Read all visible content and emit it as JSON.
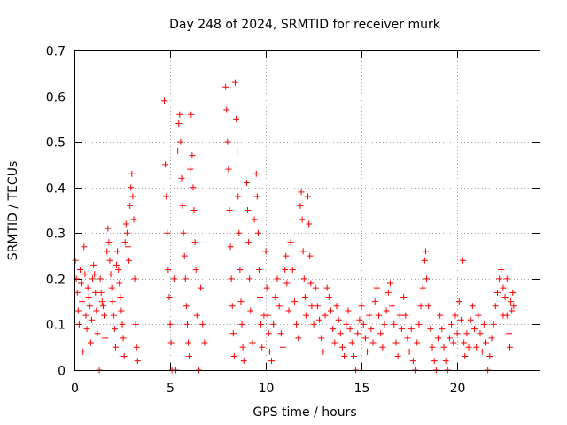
{
  "chart_data": {
    "type": "scatter",
    "title": "Day 248 of 2024, SRMTID for receiver murk",
    "xlabel": "GPS time / hours",
    "ylabel": "SRMTID / TECUs",
    "xlim": [
      0,
      24.3
    ],
    "ylim": [
      0,
      0.7
    ],
    "x_ticks": [
      0,
      5,
      10,
      15,
      20
    ],
    "x_tick_labels": [
      "0",
      "5",
      "10",
      "15",
      "20"
    ],
    "y_ticks": [
      0,
      0.1,
      0.2,
      0.3,
      0.4,
      0.5,
      0.6,
      0.7
    ],
    "y_tick_labels": [
      "0",
      "0.1",
      "0.2",
      "0.3",
      "0.4",
      "0.5",
      "0.6",
      "0.7"
    ],
    "grid": true,
    "marker": "plus",
    "color": "#ff0000",
    "series": [
      {
        "name": "SRMTID",
        "points": [
          [
            0.05,
            0.24
          ],
          [
            0.1,
            0.2
          ],
          [
            0.15,
            0.17
          ],
          [
            0.2,
            0.13
          ],
          [
            0.25,
            0.1
          ],
          [
            0.3,
            0.22
          ],
          [
            0.35,
            0.19
          ],
          [
            0.4,
            0.15
          ],
          [
            0.45,
            0.04
          ],
          [
            0.5,
            0.27
          ],
          [
            0.55,
            0.21
          ],
          [
            0.6,
            0.12
          ],
          [
            0.65,
            0.09
          ],
          [
            0.7,
            0.18
          ],
          [
            0.75,
            0.16
          ],
          [
            0.8,
            0.14
          ],
          [
            0.85,
            0.06
          ],
          [
            0.9,
            0.11
          ],
          [
            0.95,
            0.2
          ],
          [
            1.0,
            0.23
          ],
          [
            1.05,
            0.21
          ],
          [
            1.1,
            0.17
          ],
          [
            1.15,
            0.13
          ],
          [
            1.2,
            0.08
          ],
          [
            1.3,
            0.0
          ],
          [
            1.35,
            0.2
          ],
          [
            1.4,
            0.17
          ],
          [
            1.45,
            0.15
          ],
          [
            1.5,
            0.14
          ],
          [
            1.55,
            0.12
          ],
          [
            1.6,
            0.07
          ],
          [
            1.7,
            0.26
          ],
          [
            1.75,
            0.31
          ],
          [
            1.8,
            0.28
          ],
          [
            1.85,
            0.24
          ],
          [
            1.9,
            0.21
          ],
          [
            1.95,
            0.18
          ],
          [
            2.0,
            0.15
          ],
          [
            2.05,
            0.12
          ],
          [
            2.1,
            0.09
          ],
          [
            2.15,
            0.05
          ],
          [
            2.2,
            0.23
          ],
          [
            2.25,
            0.26
          ],
          [
            2.3,
            0.22
          ],
          [
            2.35,
            0.19
          ],
          [
            2.4,
            0.16
          ],
          [
            2.45,
            0.13
          ],
          [
            2.5,
            0.1
          ],
          [
            2.55,
            0.07
          ],
          [
            2.6,
            0.03
          ],
          [
            2.65,
            0.28
          ],
          [
            2.7,
            0.32
          ],
          [
            2.75,
            0.3
          ],
          [
            2.8,
            0.27
          ],
          [
            2.85,
            0.24
          ],
          [
            2.9,
            0.36
          ],
          [
            2.95,
            0.4
          ],
          [
            3.0,
            0.43
          ],
          [
            3.05,
            0.38
          ],
          [
            3.1,
            0.33
          ],
          [
            3.15,
            0.2
          ],
          [
            3.2,
            0.1
          ],
          [
            3.25,
            0.05
          ],
          [
            3.3,
            0.02
          ],
          [
            4.7,
            0.59
          ],
          [
            4.75,
            0.45
          ],
          [
            4.8,
            0.38
          ],
          [
            4.85,
            0.3
          ],
          [
            4.9,
            0.22
          ],
          [
            4.95,
            0.16
          ],
          [
            5.0,
            0.1
          ],
          [
            5.05,
            0.06
          ],
          [
            5.1,
            0.0
          ],
          [
            5.2,
            0.2
          ],
          [
            5.3,
            0.0
          ],
          [
            5.4,
            0.48
          ],
          [
            5.45,
            0.54
          ],
          [
            5.5,
            0.56
          ],
          [
            5.55,
            0.5
          ],
          [
            5.6,
            0.42
          ],
          [
            5.65,
            0.36
          ],
          [
            5.7,
            0.3
          ],
          [
            5.75,
            0.25
          ],
          [
            5.8,
            0.2
          ],
          [
            5.85,
            0.14
          ],
          [
            5.9,
            0.1
          ],
          [
            5.95,
            0.06
          ],
          [
            6.0,
            0.03
          ],
          [
            6.05,
            0.44
          ],
          [
            6.1,
            0.56
          ],
          [
            6.15,
            0.47
          ],
          [
            6.2,
            0.4
          ],
          [
            6.25,
            0.35
          ],
          [
            6.3,
            0.28
          ],
          [
            6.35,
            0.22
          ],
          [
            6.4,
            0.12
          ],
          [
            6.5,
            0.0
          ],
          [
            6.6,
            0.18
          ],
          [
            6.7,
            0.1
          ],
          [
            6.8,
            0.06
          ],
          [
            7.9,
            0.62
          ],
          [
            7.95,
            0.57
          ],
          [
            8.0,
            0.5
          ],
          [
            8.05,
            0.44
          ],
          [
            8.1,
            0.35
          ],
          [
            8.15,
            0.27
          ],
          [
            8.2,
            0.2
          ],
          [
            8.25,
            0.14
          ],
          [
            8.3,
            0.08
          ],
          [
            8.35,
            0.03
          ],
          [
            8.4,
            0.63
          ],
          [
            8.45,
            0.55
          ],
          [
            8.5,
            0.48
          ],
          [
            8.55,
            0.38
          ],
          [
            8.6,
            0.3
          ],
          [
            8.65,
            0.22
          ],
          [
            8.7,
            0.15
          ],
          [
            8.75,
            0.1
          ],
          [
            8.8,
            0.05
          ],
          [
            8.85,
            0.02
          ],
          [
            9.0,
            0.41
          ],
          [
            9.05,
            0.35
          ],
          [
            9.1,
            0.28
          ],
          [
            9.15,
            0.2
          ],
          [
            9.2,
            0.13
          ],
          [
            9.3,
            0.06
          ],
          [
            9.4,
            0.33
          ],
          [
            9.5,
            0.43
          ],
          [
            9.55,
            0.38
          ],
          [
            9.6,
            0.3
          ],
          [
            9.65,
            0.22
          ],
          [
            9.7,
            0.16
          ],
          [
            9.75,
            0.1
          ],
          [
            9.8,
            0.05
          ],
          [
            9.9,
            0.12
          ],
          [
            10.0,
            0.26
          ],
          [
            10.05,
            0.18
          ],
          [
            10.1,
            0.12
          ],
          [
            10.15,
            0.08
          ],
          [
            10.2,
            0.04
          ],
          [
            10.3,
            0.02
          ],
          [
            10.4,
            0.1
          ],
          [
            10.5,
            0.16
          ],
          [
            10.6,
            0.2
          ],
          [
            10.7,
            0.14
          ],
          [
            10.8,
            0.08
          ],
          [
            10.9,
            0.05
          ],
          [
            11.0,
            0.22
          ],
          [
            11.05,
            0.25
          ],
          [
            11.1,
            0.19
          ],
          [
            11.2,
            0.13
          ],
          [
            11.3,
            0.28
          ],
          [
            11.4,
            0.22
          ],
          [
            11.5,
            0.15
          ],
          [
            11.6,
            0.1
          ],
          [
            11.7,
            0.07
          ],
          [
            11.8,
            0.36
          ],
          [
            11.85,
            0.39
          ],
          [
            11.9,
            0.33
          ],
          [
            11.95,
            0.26
          ],
          [
            12.0,
            0.2
          ],
          [
            12.05,
            0.16
          ],
          [
            12.1,
            0.12
          ],
          [
            12.2,
            0.38
          ],
          [
            12.25,
            0.32
          ],
          [
            12.3,
            0.25
          ],
          [
            12.35,
            0.19
          ],
          [
            12.4,
            0.14
          ],
          [
            12.5,
            0.1
          ],
          [
            12.6,
            0.18
          ],
          [
            12.7,
            0.14
          ],
          [
            12.8,
            0.11
          ],
          [
            12.9,
            0.07
          ],
          [
            13.0,
            0.04
          ],
          [
            13.1,
            0.12
          ],
          [
            13.2,
            0.18
          ],
          [
            13.3,
            0.16
          ],
          [
            13.4,
            0.13
          ],
          [
            13.5,
            0.09
          ],
          [
            13.6,
            0.06
          ],
          [
            13.7,
            0.14
          ],
          [
            13.8,
            0.11
          ],
          [
            13.9,
            0.08
          ],
          [
            14.0,
            0.05
          ],
          [
            14.1,
            0.03
          ],
          [
            14.2,
            0.1
          ],
          [
            14.3,
            0.13
          ],
          [
            14.4,
            0.09
          ],
          [
            14.5,
            0.06
          ],
          [
            14.6,
            0.03
          ],
          [
            14.7,
            0.0
          ],
          [
            14.8,
            0.08
          ],
          [
            14.9,
            0.11
          ],
          [
            15.0,
            0.14
          ],
          [
            15.1,
            0.1
          ],
          [
            15.2,
            0.07
          ],
          [
            15.3,
            0.04
          ],
          [
            15.4,
            0.12
          ],
          [
            15.5,
            0.09
          ],
          [
            15.6,
            0.06
          ],
          [
            15.7,
            0.15
          ],
          [
            15.8,
            0.18
          ],
          [
            15.9,
            0.12
          ],
          [
            16.0,
            0.08
          ],
          [
            16.1,
            0.05
          ],
          [
            16.2,
            0.1
          ],
          [
            16.3,
            0.13
          ],
          [
            16.4,
            0.17
          ],
          [
            16.5,
            0.19
          ],
          [
            16.6,
            0.14
          ],
          [
            16.7,
            0.1
          ],
          [
            16.8,
            0.06
          ],
          [
            16.9,
            0.03
          ],
          [
            17.0,
            0.12
          ],
          [
            17.1,
            0.09
          ],
          [
            17.2,
            0.16
          ],
          [
            17.3,
            0.12
          ],
          [
            17.4,
            0.07
          ],
          [
            17.5,
            0.04
          ],
          [
            17.6,
            0.09
          ],
          [
            17.7,
            0.02
          ],
          [
            17.8,
            0.0
          ],
          [
            17.9,
            0.06
          ],
          [
            18.0,
            0.1
          ],
          [
            18.1,
            0.14
          ],
          [
            18.2,
            0.18
          ],
          [
            18.3,
            0.24
          ],
          [
            18.35,
            0.26
          ],
          [
            18.4,
            0.2
          ],
          [
            18.5,
            0.14
          ],
          [
            18.6,
            0.09
          ],
          [
            18.7,
            0.05
          ],
          [
            18.8,
            0.02
          ],
          [
            18.9,
            0.0
          ],
          [
            19.0,
            0.07
          ],
          [
            19.1,
            0.12
          ],
          [
            19.2,
            0.09
          ],
          [
            19.3,
            0.05
          ],
          [
            19.4,
            0.02
          ],
          [
            19.5,
            0.0
          ],
          [
            19.6,
            0.07
          ],
          [
            19.7,
            0.1
          ],
          [
            19.8,
            0.06
          ],
          [
            19.9,
            0.12
          ],
          [
            20.0,
            0.08
          ],
          [
            20.1,
            0.15
          ],
          [
            20.2,
            0.11
          ],
          [
            20.3,
            0.24
          ],
          [
            20.35,
            0.06
          ],
          [
            20.4,
            0.03
          ],
          [
            20.5,
            0.08
          ],
          [
            20.6,
            0.05
          ],
          [
            20.7,
            0.11
          ],
          [
            20.8,
            0.14
          ],
          [
            20.9,
            0.09
          ],
          [
            21.0,
            0.05
          ],
          [
            21.1,
            0.12
          ],
          [
            21.2,
            0.08
          ],
          [
            21.3,
            0.04
          ],
          [
            21.4,
            0.1
          ],
          [
            21.5,
            0.06
          ],
          [
            21.6,
            0.0
          ],
          [
            21.7,
            0.03
          ],
          [
            21.8,
            0.07
          ],
          [
            21.9,
            0.1
          ],
          [
            22.0,
            0.14
          ],
          [
            22.1,
            0.17
          ],
          [
            22.2,
            0.2
          ],
          [
            22.3,
            0.22
          ],
          [
            22.4,
            0.18
          ],
          [
            22.5,
            0.16
          ],
          [
            22.6,
            0.12
          ],
          [
            22.7,
            0.08
          ],
          [
            22.75,
            0.05
          ],
          [
            22.8,
            0.15
          ],
          [
            22.85,
            0.13
          ],
          [
            22.9,
            0.17
          ],
          [
            22.95,
            0.14
          ],
          [
            22.6,
            0.2
          ],
          [
            22.4,
            0.12
          ]
        ]
      }
    ]
  }
}
